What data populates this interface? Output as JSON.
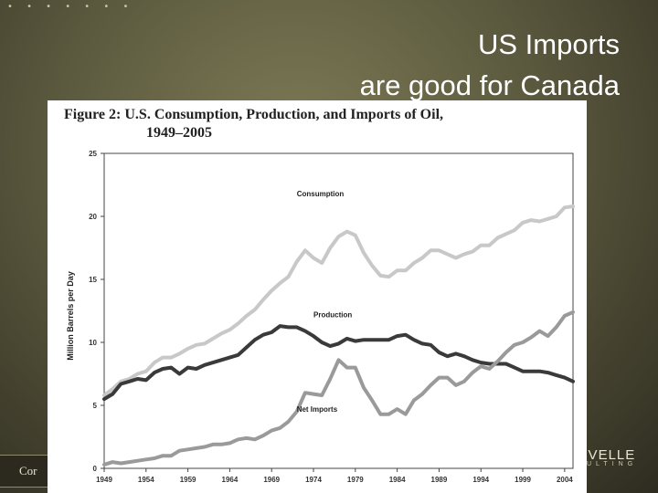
{
  "slide": {
    "title_line1": "US Imports",
    "title_line2": "are good for Canada",
    "dots": "• • • • • • •",
    "footer_left": "Cor",
    "logo_main": "RVELLE",
    "logo_sub": "ULTING"
  },
  "chart_data": {
    "type": "line",
    "title": "Figure 2:  U.S. Consumption, Production, and Imports of Oil,",
    "title_line2": "1949–2005",
    "ylabel": "Million Barrels per Day",
    "xlabel": "",
    "ylim": [
      0,
      25
    ],
    "xlim": [
      1949,
      2005
    ],
    "y_ticks": [
      0,
      5,
      10,
      15,
      20,
      25
    ],
    "x_ticks": [
      1949,
      1954,
      1959,
      1964,
      1969,
      1974,
      1979,
      1984,
      1989,
      1994,
      1999,
      2004
    ],
    "grid": false,
    "x": [
      1949,
      1950,
      1951,
      1952,
      1953,
      1954,
      1955,
      1956,
      1957,
      1958,
      1959,
      1960,
      1961,
      1962,
      1963,
      1964,
      1965,
      1966,
      1967,
      1968,
      1969,
      1970,
      1971,
      1972,
      1973,
      1974,
      1975,
      1976,
      1977,
      1978,
      1979,
      1980,
      1981,
      1982,
      1983,
      1984,
      1985,
      1986,
      1987,
      1988,
      1989,
      1990,
      1991,
      1992,
      1993,
      1994,
      1995,
      1996,
      1997,
      1998,
      1999,
      2000,
      2001,
      2002,
      2003,
      2004,
      2005
    ],
    "series": [
      {
        "name": "Consumption",
        "label": "Consumption",
        "color": "#c8c8c8",
        "values": [
          5.8,
          6.3,
          6.9,
          7.1,
          7.5,
          7.7,
          8.4,
          8.8,
          8.8,
          9.1,
          9.5,
          9.8,
          9.9,
          10.3,
          10.7,
          11.0,
          11.5,
          12.1,
          12.6,
          13.4,
          14.1,
          14.7,
          15.2,
          16.4,
          17.3,
          16.7,
          16.3,
          17.5,
          18.4,
          18.8,
          18.5,
          17.1,
          16.1,
          15.3,
          15.2,
          15.7,
          15.7,
          16.3,
          16.7,
          17.3,
          17.3,
          17.0,
          16.7,
          17.0,
          17.2,
          17.7,
          17.7,
          18.3,
          18.6,
          18.9,
          19.5,
          19.7,
          19.6,
          19.8,
          20.0,
          20.7,
          20.8
        ]
      },
      {
        "name": "Production",
        "label": "Production",
        "color": "#3a3a3a",
        "values": [
          5.5,
          5.9,
          6.7,
          6.9,
          7.1,
          7.0,
          7.6,
          7.9,
          8.0,
          7.5,
          8.0,
          7.9,
          8.2,
          8.4,
          8.6,
          8.8,
          9.0,
          9.6,
          10.2,
          10.6,
          10.8,
          11.3,
          11.2,
          11.2,
          10.9,
          10.5,
          10.0,
          9.7,
          9.9,
          10.3,
          10.1,
          10.2,
          10.2,
          10.2,
          10.2,
          10.5,
          10.6,
          10.2,
          9.9,
          9.8,
          9.2,
          8.9,
          9.1,
          8.9,
          8.6,
          8.4,
          8.3,
          8.3,
          8.3,
          8.0,
          7.7,
          7.7,
          7.7,
          7.6,
          7.4,
          7.2,
          6.9
        ]
      },
      {
        "name": "Net Imports",
        "label": "Net Imports",
        "color": "#9a9a9a",
        "values": [
          0.3,
          0.5,
          0.4,
          0.5,
          0.6,
          0.7,
          0.8,
          1.0,
          1.0,
          1.4,
          1.5,
          1.6,
          1.7,
          1.9,
          1.9,
          2.0,
          2.3,
          2.4,
          2.3,
          2.6,
          3.0,
          3.2,
          3.7,
          4.5,
          6.0,
          5.9,
          5.8,
          7.1,
          8.6,
          8.0,
          8.0,
          6.4,
          5.4,
          4.3,
          4.3,
          4.7,
          4.3,
          5.4,
          5.9,
          6.6,
          7.2,
          7.2,
          6.6,
          6.9,
          7.6,
          8.1,
          7.9,
          8.5,
          9.2,
          9.8,
          10.0,
          10.4,
          10.9,
          10.5,
          11.2,
          12.1,
          12.4
        ]
      }
    ]
  }
}
